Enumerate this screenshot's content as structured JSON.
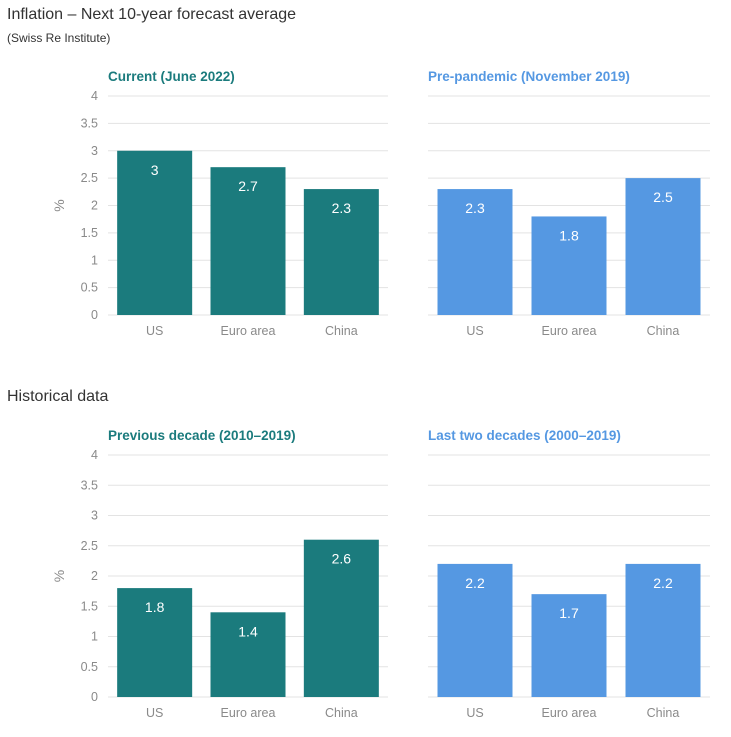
{
  "title": "Inflation – Next 10-year forecast average",
  "subtitle": "(Swiss Re Institute)",
  "historical_title": "Historical data",
  "colors": {
    "teal": "#1b7b7d",
    "blue": "#5598e2",
    "grid": "#e3e3e3"
  },
  "chart_data": [
    {
      "type": "bar",
      "title": "Current (June 2022)",
      "categories": [
        "US",
        "Euro area",
        "China"
      ],
      "values": [
        3,
        2.7,
        2.3
      ],
      "ylabel": "%",
      "ylim": [
        0,
        4
      ],
      "yticks": [
        "0",
        "0.5",
        "1",
        "1.5",
        "2",
        "2.5",
        "3",
        "3.5",
        "4"
      ],
      "color": "#1b7b7d",
      "grid": true
    },
    {
      "type": "bar",
      "title": "Pre-pandemic (November 2019)",
      "categories": [
        "US",
        "Euro area",
        "China"
      ],
      "values": [
        2.3,
        1.8,
        2.5
      ],
      "ylim": [
        0,
        4
      ],
      "color": "#5598e2",
      "grid": true
    },
    {
      "type": "bar",
      "title": "Previous decade (2010–2019)",
      "categories": [
        "US",
        "Euro area",
        "China"
      ],
      "values": [
        1.8,
        1.4,
        2.6
      ],
      "ylabel": "%",
      "ylim": [
        0,
        4
      ],
      "yticks": [
        "0",
        "0.5",
        "1",
        "1.5",
        "2",
        "2.5",
        "3",
        "3.5",
        "4"
      ],
      "color": "#1b7b7d",
      "grid": true
    },
    {
      "type": "bar",
      "title": "Last two decades (2000–2019)",
      "categories": [
        "US",
        "Euro area",
        "China"
      ],
      "values": [
        2.2,
        1.7,
        2.2
      ],
      "ylim": [
        0,
        4
      ],
      "color": "#5598e2",
      "grid": true
    }
  ]
}
